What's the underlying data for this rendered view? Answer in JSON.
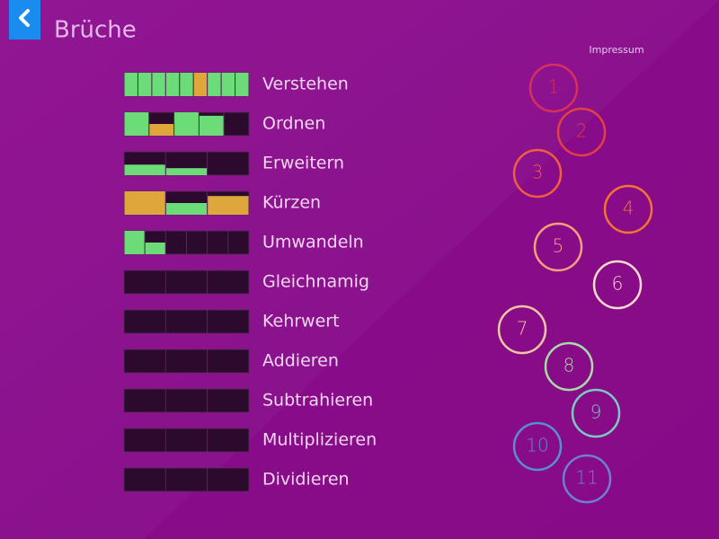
{
  "header": {
    "title": "Brüche"
  },
  "impressum": "Impressum",
  "topics": [
    "Verstehen",
    "Ordnen",
    "Erweitern",
    "Kürzen",
    "Umwandeln",
    "Gleichnamig",
    "Kehrwert",
    "Addieren",
    "Subtrahieren",
    "Multiplizieren",
    "Dividieren"
  ],
  "levels": [
    "1",
    "2",
    "3",
    "4",
    "5",
    "6",
    "7",
    "8",
    "9",
    "10",
    "11"
  ]
}
